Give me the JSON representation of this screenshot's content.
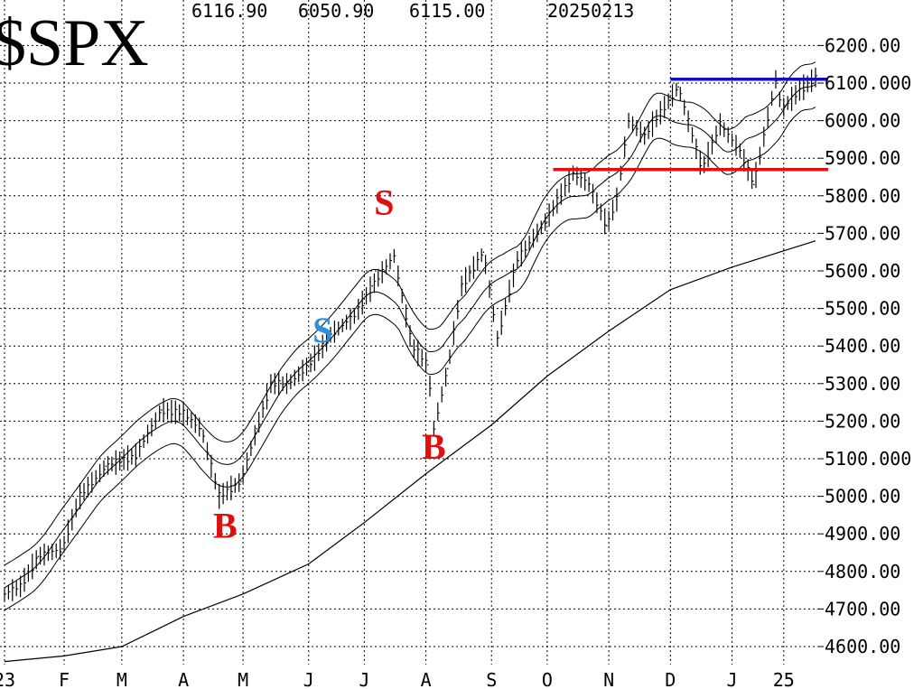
{
  "header": {
    "symbol": "$SPX",
    "high": "6116.90",
    "low": "6050.90",
    "close": "6115.00",
    "date": "20250213"
  },
  "chart_data": {
    "type": "line",
    "title": "$SPX",
    "xlabel": "",
    "ylabel": "",
    "ylim": [
      4560,
      6250
    ],
    "y_ticks": [
      "4600.00",
      "4700.00",
      "4800.00",
      "4900.00",
      "5000.00",
      "5100.000",
      "5200.00",
      "5300.00",
      "5400.00",
      "5500.00",
      "5600.00",
      "5700.00",
      "5800.00",
      "5900.00",
      "6000.00",
      "6100.000",
      "6200.00"
    ],
    "y_tick_values": [
      4600,
      4700,
      4800,
      4900,
      5000,
      5100,
      5200,
      5300,
      5400,
      5500,
      5600,
      5700,
      5800,
      5900,
      6000,
      6100,
      6200
    ],
    "x_tick_labels": [
      "23",
      "F",
      "M",
      "A",
      "M",
      "J",
      "J",
      "A",
      "S",
      "O",
      "N",
      "D",
      "J",
      "25"
    ],
    "x_tick_dates": [
      "2024-01-02",
      "2024-02-01",
      "2024-03-01",
      "2024-04-01",
      "2024-05-01",
      "2024-06-03",
      "2024-07-01",
      "2024-08-01",
      "2024-09-03",
      "2024-10-01",
      "2024-11-01",
      "2024-12-02",
      "2025-01-02",
      "2025-01-28"
    ],
    "grid": true,
    "series": [
      {
        "role": "price",
        "x": [
          "2024-01-02",
          "2024-01-10",
          "2024-01-19",
          "2024-01-31",
          "2024-02-09",
          "2024-02-22",
          "2024-03-08",
          "2024-03-21",
          "2024-04-01",
          "2024-04-10",
          "2024-04-19",
          "2024-04-30",
          "2024-05-08",
          "2024-05-15",
          "2024-05-24",
          "2024-06-05",
          "2024-06-14",
          "2024-06-26",
          "2024-07-05",
          "2024-07-16",
          "2024-07-25",
          "2024-08-02",
          "2024-08-05",
          "2024-08-12",
          "2024-08-19",
          "2024-08-30",
          "2024-09-06",
          "2024-09-16",
          "2024-09-30",
          "2024-10-14",
          "2024-10-22",
          "2024-10-31",
          "2024-11-05",
          "2024-11-11",
          "2024-11-19",
          "2024-12-06",
          "2024-12-18",
          "2024-12-27",
          "2025-01-06",
          "2025-01-13",
          "2025-01-24",
          "2025-01-27",
          "2025-02-05",
          "2025-02-13"
        ],
        "values": [
          4740,
          4760,
          4840,
          4860,
          5000,
          5080,
          5110,
          5230,
          5220,
          5180,
          5000,
          5040,
          5180,
          5300,
          5300,
          5360,
          5430,
          5480,
          5560,
          5640,
          5400,
          5350,
          5180,
          5340,
          5560,
          5650,
          5420,
          5630,
          5730,
          5860,
          5830,
          5720,
          5790,
          6000,
          5960,
          6090,
          5870,
          5990,
          5920,
          5830,
          6110,
          6030,
          6080,
          6115
        ]
      },
      {
        "role": "moving-average",
        "x": [
          "2024-01-02",
          "2024-02-01",
          "2024-03-01",
          "2024-04-01",
          "2024-05-01",
          "2024-06-03",
          "2024-07-01",
          "2024-08-01",
          "2024-09-03",
          "2024-10-01",
          "2024-11-01",
          "2024-12-02",
          "2025-01-02",
          "2025-02-13"
        ],
        "values": [
          4560,
          4575,
          4600,
          4680,
          4740,
          4820,
          4930,
          5060,
          5190,
          5320,
          5440,
          5550,
          5610,
          5680
        ]
      }
    ],
    "annotations": [
      {
        "label": "B",
        "date": "2024-04-22",
        "value": 4890,
        "color": "#e01010"
      },
      {
        "label": "S",
        "date": "2024-06-10",
        "value": 5410,
        "color": "#2f8fdf"
      },
      {
        "label": "S",
        "date": "2024-07-11",
        "value": 5750,
        "color": "#e01010"
      },
      {
        "label": "B",
        "date": "2024-08-05",
        "value": 5100,
        "color": "#e01010"
      }
    ],
    "horizontal_lines": [
      {
        "value": 6110,
        "from": "2024-12-02",
        "to": "2025-02-13",
        "color": "#1010c0"
      },
      {
        "value": 5870,
        "from": "2024-10-04",
        "to": "2025-02-13",
        "color": "#e01010"
      }
    ]
  }
}
